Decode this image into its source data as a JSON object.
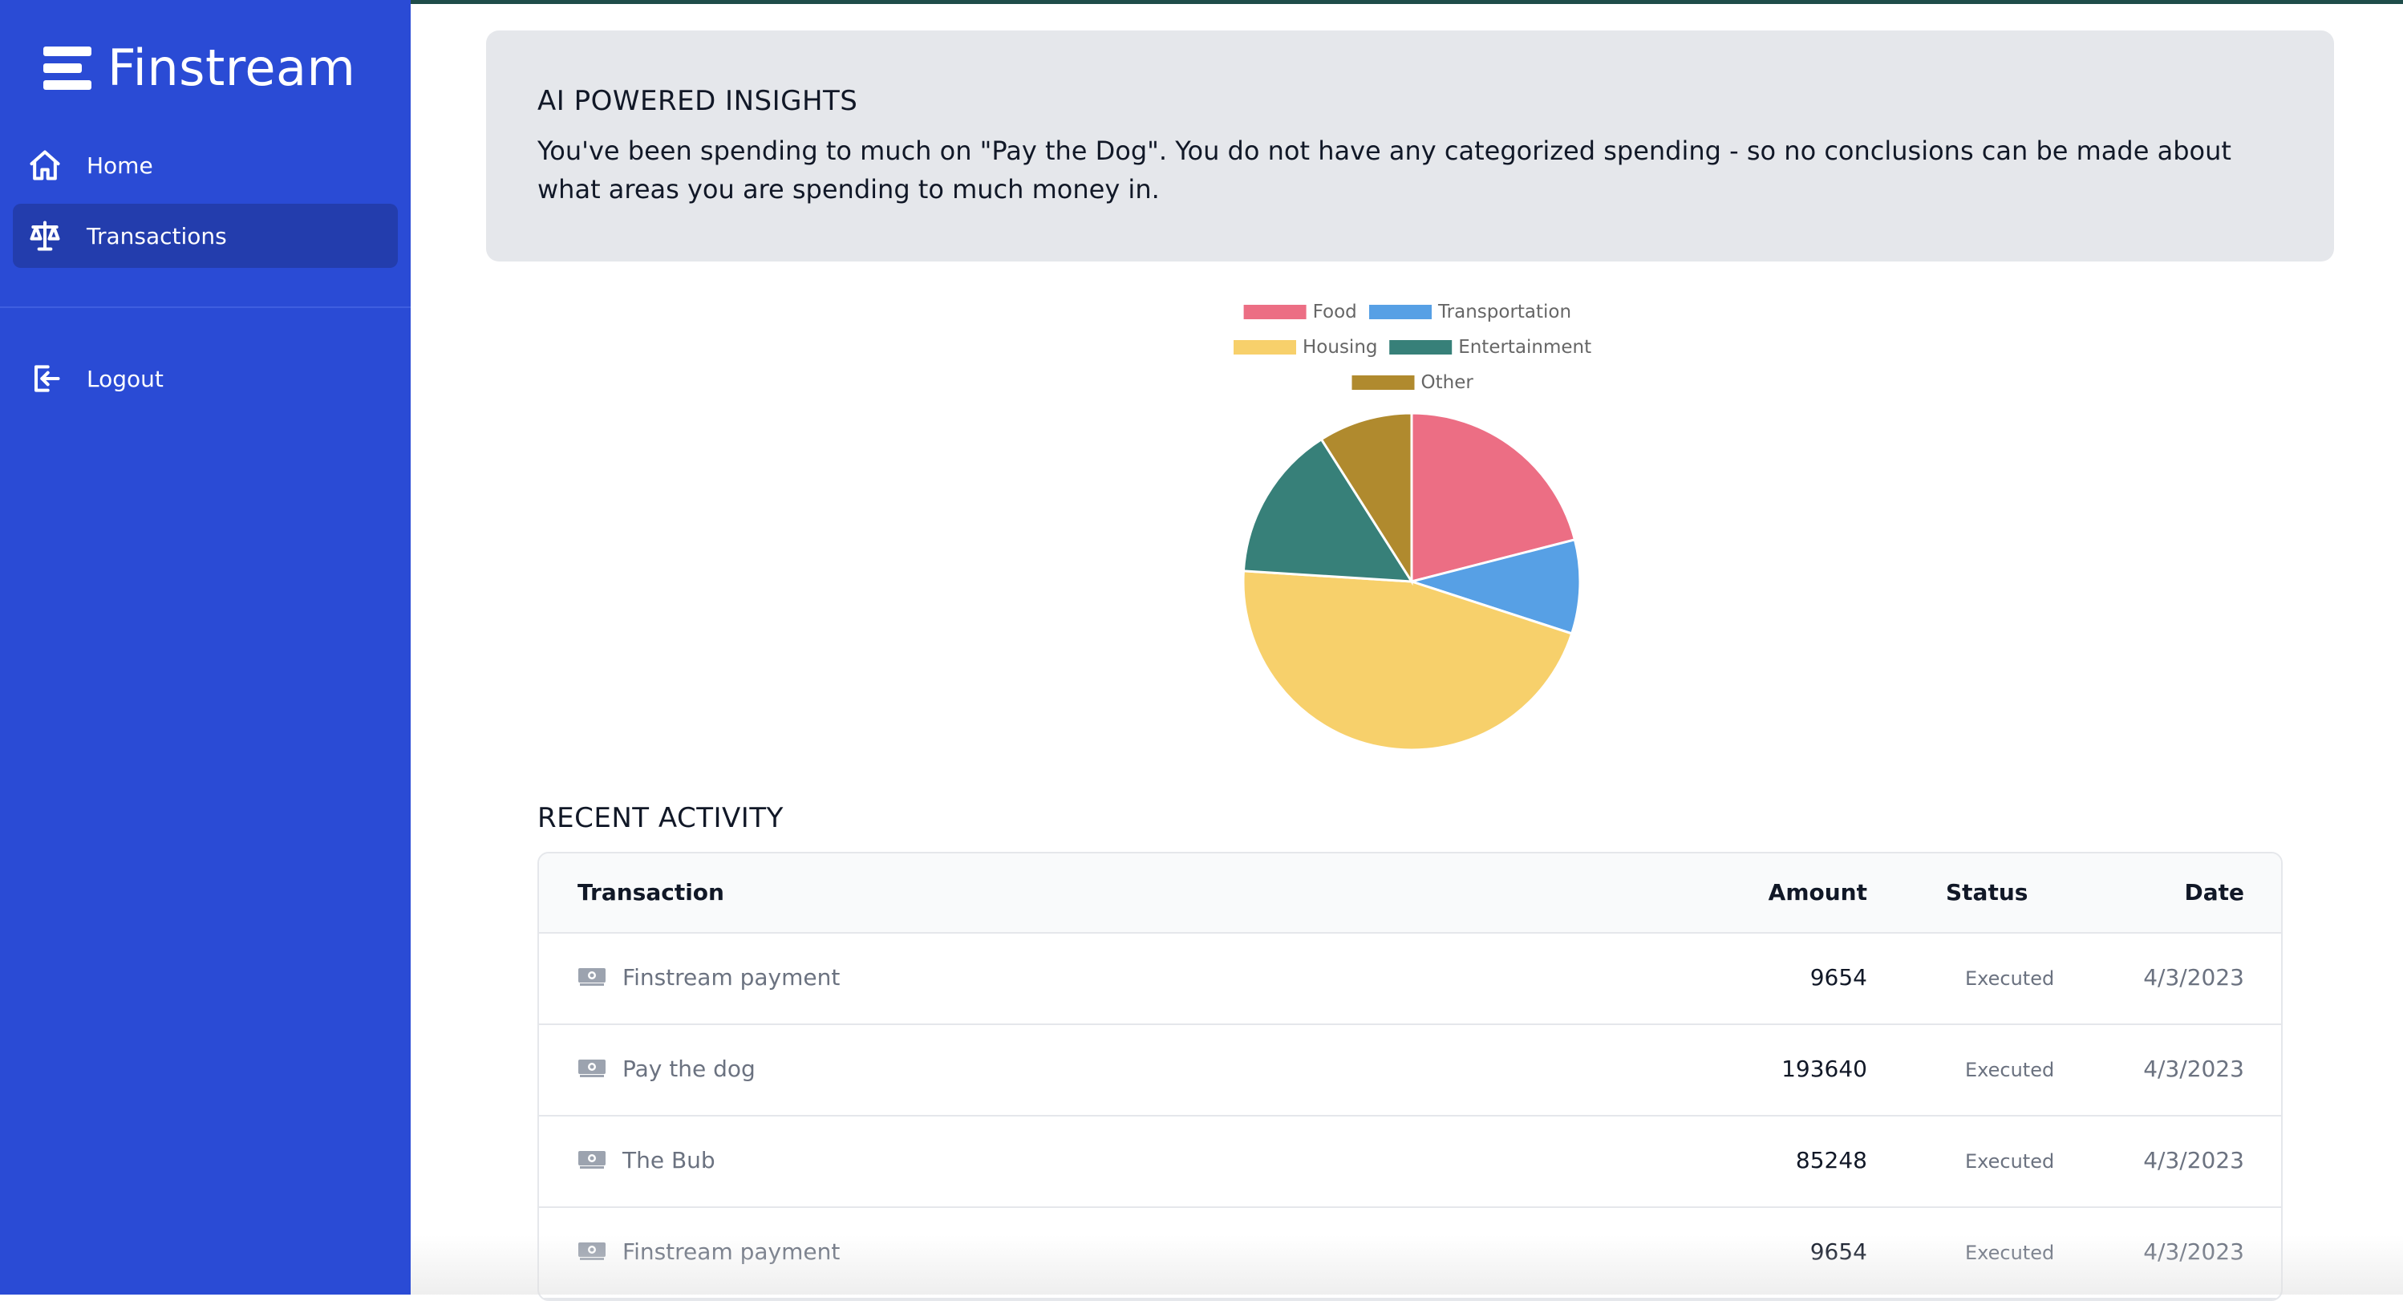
{
  "app": {
    "name": "Finstream"
  },
  "sidebar": {
    "items": [
      {
        "label": "Home",
        "icon": "home-icon"
      },
      {
        "label": "Transactions",
        "icon": "scale-icon",
        "active": true
      },
      {
        "label": "Logout",
        "icon": "logout-icon"
      }
    ]
  },
  "insights": {
    "title": "AI POWERED INSIGHTS",
    "text": "You've been spending to much on \"Pay the Dog\". You do not have any categorized spending - so no conclusions can be made about what areas you are spending to much money in."
  },
  "chart_data": {
    "type": "pie",
    "title": "",
    "legend_position": "top",
    "categories": [
      "Food",
      "Transportation",
      "Housing",
      "Entertainment",
      "Other"
    ],
    "values": [
      21,
      9,
      46,
      15,
      9
    ],
    "colors": [
      "#ec6e84",
      "#57a0e5",
      "#f7d06b",
      "#378079",
      "#b08a2e"
    ]
  },
  "activity": {
    "title": "RECENT ACTIVITY",
    "columns": [
      "Transaction",
      "Amount",
      "Status",
      "Date"
    ],
    "rows": [
      {
        "name": "Finstream payment",
        "amount": "9654",
        "status": "Executed",
        "date": "4/3/2023"
      },
      {
        "name": "Pay the dog",
        "amount": "193640",
        "status": "Executed",
        "date": "4/3/2023"
      },
      {
        "name": "The Bub",
        "amount": "85248",
        "status": "Executed",
        "date": "4/3/2023"
      },
      {
        "name": "Finstream payment",
        "amount": "9654",
        "status": "Executed",
        "date": "4/3/2023"
      }
    ]
  }
}
